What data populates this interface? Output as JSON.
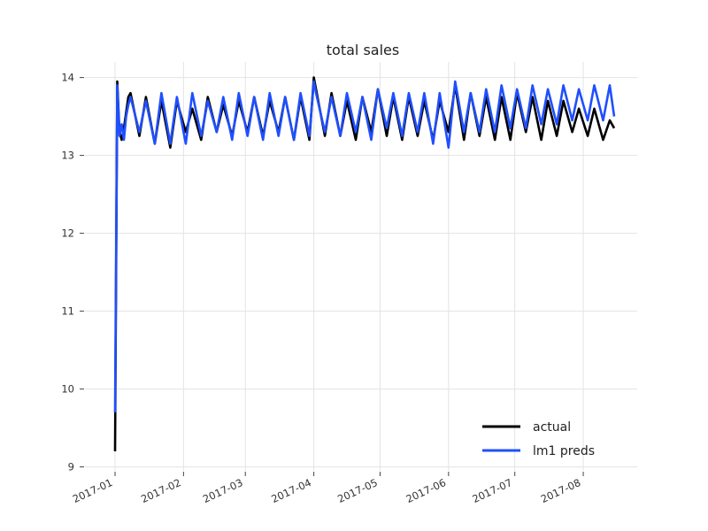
{
  "chart_data": {
    "type": "line",
    "title": "total sales",
    "xlabel": "",
    "ylabel": "",
    "x_range": [
      "2017-01-01",
      "2017-08-15"
    ],
    "ylim": [
      8.95,
      14.2
    ],
    "grid": true,
    "legend_position": "bottom-right",
    "x_ticks": [
      "2017-01",
      "2017-02",
      "2017-03",
      "2017-04",
      "2017-05",
      "2017-06",
      "2017-07",
      "2017-08"
    ],
    "y_ticks": [
      "9",
      "10",
      "11",
      "12",
      "13",
      "14"
    ],
    "series": [
      {
        "name": "actual",
        "color": "#000000",
        "x": [
          "2017-01-01",
          "2017-01-02",
          "2017-01-03",
          "2017-01-04",
          "2017-01-05",
          "2017-01-06",
          "2017-01-07",
          "2017-01-08",
          "2017-01-12",
          "2017-01-15",
          "2017-01-19",
          "2017-01-22",
          "2017-01-26",
          "2017-01-29",
          "2017-02-02",
          "2017-02-05",
          "2017-02-09",
          "2017-02-12",
          "2017-02-16",
          "2017-02-19",
          "2017-02-23",
          "2017-02-26",
          "2017-03-02",
          "2017-03-05",
          "2017-03-09",
          "2017-03-12",
          "2017-03-16",
          "2017-03-19",
          "2017-03-23",
          "2017-03-26",
          "2017-03-30",
          "2017-04-01",
          "2017-04-02",
          "2017-04-06",
          "2017-04-09",
          "2017-04-13",
          "2017-04-16",
          "2017-04-20",
          "2017-04-23",
          "2017-04-27",
          "2017-04-30",
          "2017-05-04",
          "2017-05-07",
          "2017-05-11",
          "2017-05-14",
          "2017-05-18",
          "2017-05-21",
          "2017-05-25",
          "2017-05-28",
          "2017-06-01",
          "2017-06-04",
          "2017-06-08",
          "2017-06-11",
          "2017-06-15",
          "2017-06-18",
          "2017-06-22",
          "2017-06-25",
          "2017-06-29",
          "2017-07-02",
          "2017-07-06",
          "2017-07-09",
          "2017-07-13",
          "2017-07-16",
          "2017-07-20",
          "2017-07-23",
          "2017-07-27",
          "2017-07-30",
          "2017-08-03",
          "2017-08-06",
          "2017-08-10",
          "2017-08-13",
          "2017-08-15"
        ],
        "y": [
          9.2,
          13.95,
          13.3,
          13.2,
          13.35,
          13.55,
          13.75,
          13.8,
          13.25,
          13.75,
          13.15,
          13.7,
          13.1,
          13.7,
          13.3,
          13.6,
          13.2,
          13.75,
          13.3,
          13.65,
          13.25,
          13.7,
          13.3,
          13.75,
          13.25,
          13.7,
          13.3,
          13.75,
          13.2,
          13.75,
          13.2,
          14.0,
          13.85,
          13.25,
          13.8,
          13.25,
          13.7,
          13.2,
          13.75,
          13.3,
          13.85,
          13.25,
          13.75,
          13.2,
          13.75,
          13.25,
          13.7,
          13.2,
          13.7,
          13.3,
          13.9,
          13.2,
          13.8,
          13.25,
          13.75,
          13.2,
          13.75,
          13.2,
          13.8,
          13.3,
          13.75,
          13.2,
          13.7,
          13.25,
          13.7,
          13.3,
          13.6,
          13.25,
          13.6,
          13.2,
          13.45,
          13.35
        ]
      },
      {
        "name": "lm1 preds",
        "color": "#1f4fff",
        "x": [
          "2017-01-01",
          "2017-01-02",
          "2017-01-03",
          "2017-01-04",
          "2017-01-05",
          "2017-01-06",
          "2017-01-07",
          "2017-01-08",
          "2017-01-12",
          "2017-01-15",
          "2017-01-19",
          "2017-01-22",
          "2017-01-26",
          "2017-01-29",
          "2017-02-02",
          "2017-02-05",
          "2017-02-09",
          "2017-02-12",
          "2017-02-16",
          "2017-02-19",
          "2017-02-23",
          "2017-02-26",
          "2017-03-02",
          "2017-03-05",
          "2017-03-09",
          "2017-03-12",
          "2017-03-16",
          "2017-03-19",
          "2017-03-23",
          "2017-03-26",
          "2017-03-30",
          "2017-04-01",
          "2017-04-02",
          "2017-04-06",
          "2017-04-09",
          "2017-04-13",
          "2017-04-16",
          "2017-04-20",
          "2017-04-23",
          "2017-04-27",
          "2017-04-30",
          "2017-05-04",
          "2017-05-07",
          "2017-05-11",
          "2017-05-14",
          "2017-05-18",
          "2017-05-21",
          "2017-05-25",
          "2017-05-28",
          "2017-06-01",
          "2017-06-04",
          "2017-06-08",
          "2017-06-11",
          "2017-06-15",
          "2017-06-18",
          "2017-06-22",
          "2017-06-25",
          "2017-06-29",
          "2017-07-02",
          "2017-07-06",
          "2017-07-09",
          "2017-07-13",
          "2017-07-16",
          "2017-07-20",
          "2017-07-23",
          "2017-07-27",
          "2017-07-30",
          "2017-08-03",
          "2017-08-06",
          "2017-08-10",
          "2017-08-13",
          "2017-08-15"
        ],
        "y": [
          9.7,
          13.9,
          13.25,
          13.4,
          13.2,
          13.5,
          13.65,
          13.75,
          13.3,
          13.7,
          13.15,
          13.8,
          13.15,
          13.75,
          13.15,
          13.8,
          13.25,
          13.7,
          13.3,
          13.75,
          13.2,
          13.8,
          13.25,
          13.75,
          13.2,
          13.8,
          13.25,
          13.75,
          13.2,
          13.8,
          13.25,
          13.95,
          13.8,
          13.3,
          13.75,
          13.25,
          13.8,
          13.3,
          13.75,
          13.2,
          13.85,
          13.35,
          13.8,
          13.25,
          13.8,
          13.3,
          13.8,
          13.15,
          13.8,
          13.1,
          13.95,
          13.3,
          13.8,
          13.3,
          13.85,
          13.3,
          13.9,
          13.35,
          13.85,
          13.35,
          13.9,
          13.4,
          13.85,
          13.4,
          13.9,
          13.45,
          13.85,
          13.45,
          13.9,
          13.45,
          13.9,
          13.5
        ]
      }
    ]
  }
}
